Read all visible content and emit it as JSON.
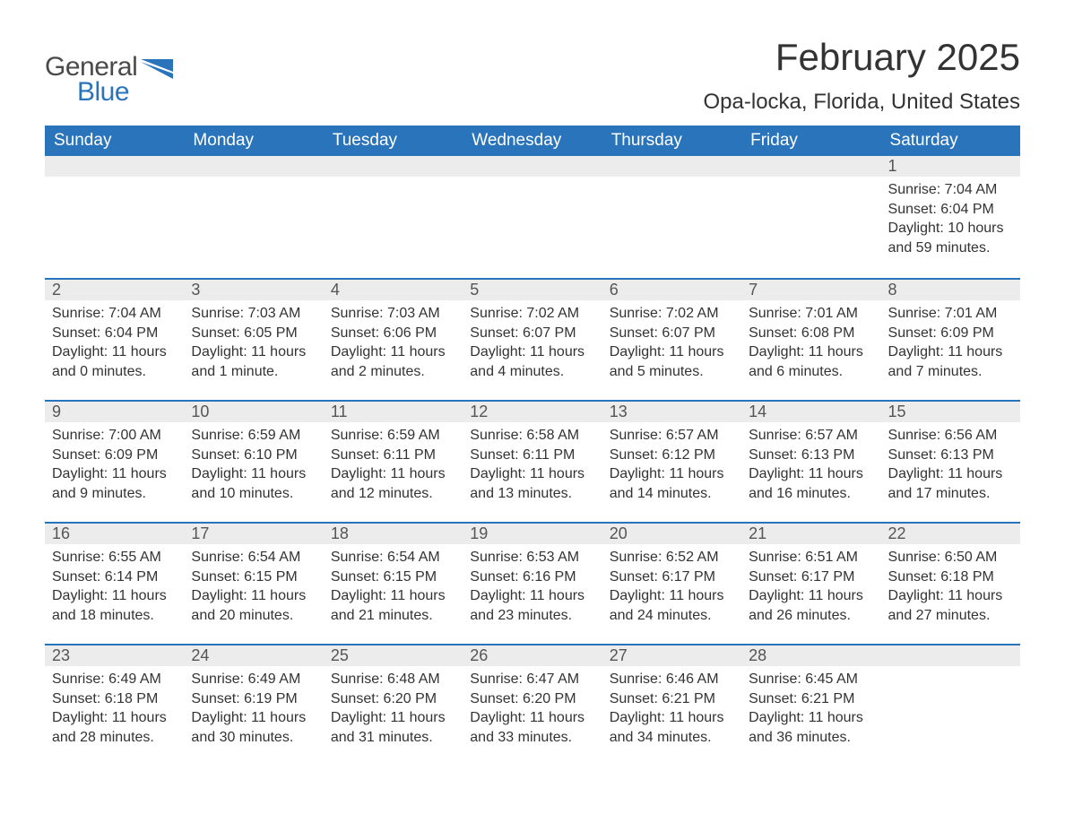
{
  "brand": {
    "part1": "General",
    "part2": "Blue"
  },
  "title": "February 2025",
  "location": "Opa-locka, Florida, United States",
  "colors": {
    "header_bg": "#2a74bb",
    "header_text": "#ffffff",
    "daynum_bg": "#ececec",
    "daynum_text": "#555555",
    "body_text": "#333333",
    "page_bg": "#ffffff",
    "row_border": "#2a74bb",
    "logo_accent": "#2a74bb",
    "logo_text": "#4a4a4a"
  },
  "typography": {
    "title_fontsize": 42,
    "location_fontsize": 24,
    "dow_fontsize": 19,
    "daynum_fontsize": 18,
    "body_fontsize": 16
  },
  "layout": {
    "columns": 7,
    "rows": 5
  },
  "daysOfWeek": [
    "Sunday",
    "Monday",
    "Tuesday",
    "Wednesday",
    "Thursday",
    "Friday",
    "Saturday"
  ],
  "weeks": [
    [
      {
        "num": "",
        "sunrise": "",
        "sunset": "",
        "daylight1": "",
        "daylight2": ""
      },
      {
        "num": "",
        "sunrise": "",
        "sunset": "",
        "daylight1": "",
        "daylight2": ""
      },
      {
        "num": "",
        "sunrise": "",
        "sunset": "",
        "daylight1": "",
        "daylight2": ""
      },
      {
        "num": "",
        "sunrise": "",
        "sunset": "",
        "daylight1": "",
        "daylight2": ""
      },
      {
        "num": "",
        "sunrise": "",
        "sunset": "",
        "daylight1": "",
        "daylight2": ""
      },
      {
        "num": "",
        "sunrise": "",
        "sunset": "",
        "daylight1": "",
        "daylight2": ""
      },
      {
        "num": "1",
        "sunrise": "Sunrise: 7:04 AM",
        "sunset": "Sunset: 6:04 PM",
        "daylight1": "Daylight: 10 hours",
        "daylight2": "and 59 minutes."
      }
    ],
    [
      {
        "num": "2",
        "sunrise": "Sunrise: 7:04 AM",
        "sunset": "Sunset: 6:04 PM",
        "daylight1": "Daylight: 11 hours",
        "daylight2": "and 0 minutes."
      },
      {
        "num": "3",
        "sunrise": "Sunrise: 7:03 AM",
        "sunset": "Sunset: 6:05 PM",
        "daylight1": "Daylight: 11 hours",
        "daylight2": "and 1 minute."
      },
      {
        "num": "4",
        "sunrise": "Sunrise: 7:03 AM",
        "sunset": "Sunset: 6:06 PM",
        "daylight1": "Daylight: 11 hours",
        "daylight2": "and 2 minutes."
      },
      {
        "num": "5",
        "sunrise": "Sunrise: 7:02 AM",
        "sunset": "Sunset: 6:07 PM",
        "daylight1": "Daylight: 11 hours",
        "daylight2": "and 4 minutes."
      },
      {
        "num": "6",
        "sunrise": "Sunrise: 7:02 AM",
        "sunset": "Sunset: 6:07 PM",
        "daylight1": "Daylight: 11 hours",
        "daylight2": "and 5 minutes."
      },
      {
        "num": "7",
        "sunrise": "Sunrise: 7:01 AM",
        "sunset": "Sunset: 6:08 PM",
        "daylight1": "Daylight: 11 hours",
        "daylight2": "and 6 minutes."
      },
      {
        "num": "8",
        "sunrise": "Sunrise: 7:01 AM",
        "sunset": "Sunset: 6:09 PM",
        "daylight1": "Daylight: 11 hours",
        "daylight2": "and 7 minutes."
      }
    ],
    [
      {
        "num": "9",
        "sunrise": "Sunrise: 7:00 AM",
        "sunset": "Sunset: 6:09 PM",
        "daylight1": "Daylight: 11 hours",
        "daylight2": "and 9 minutes."
      },
      {
        "num": "10",
        "sunrise": "Sunrise: 6:59 AM",
        "sunset": "Sunset: 6:10 PM",
        "daylight1": "Daylight: 11 hours",
        "daylight2": "and 10 minutes."
      },
      {
        "num": "11",
        "sunrise": "Sunrise: 6:59 AM",
        "sunset": "Sunset: 6:11 PM",
        "daylight1": "Daylight: 11 hours",
        "daylight2": "and 12 minutes."
      },
      {
        "num": "12",
        "sunrise": "Sunrise: 6:58 AM",
        "sunset": "Sunset: 6:11 PM",
        "daylight1": "Daylight: 11 hours",
        "daylight2": "and 13 minutes."
      },
      {
        "num": "13",
        "sunrise": "Sunrise: 6:57 AM",
        "sunset": "Sunset: 6:12 PM",
        "daylight1": "Daylight: 11 hours",
        "daylight2": "and 14 minutes."
      },
      {
        "num": "14",
        "sunrise": "Sunrise: 6:57 AM",
        "sunset": "Sunset: 6:13 PM",
        "daylight1": "Daylight: 11 hours",
        "daylight2": "and 16 minutes."
      },
      {
        "num": "15",
        "sunrise": "Sunrise: 6:56 AM",
        "sunset": "Sunset: 6:13 PM",
        "daylight1": "Daylight: 11 hours",
        "daylight2": "and 17 minutes."
      }
    ],
    [
      {
        "num": "16",
        "sunrise": "Sunrise: 6:55 AM",
        "sunset": "Sunset: 6:14 PM",
        "daylight1": "Daylight: 11 hours",
        "daylight2": "and 18 minutes."
      },
      {
        "num": "17",
        "sunrise": "Sunrise: 6:54 AM",
        "sunset": "Sunset: 6:15 PM",
        "daylight1": "Daylight: 11 hours",
        "daylight2": "and 20 minutes."
      },
      {
        "num": "18",
        "sunrise": "Sunrise: 6:54 AM",
        "sunset": "Sunset: 6:15 PM",
        "daylight1": "Daylight: 11 hours",
        "daylight2": "and 21 minutes."
      },
      {
        "num": "19",
        "sunrise": "Sunrise: 6:53 AM",
        "sunset": "Sunset: 6:16 PM",
        "daylight1": "Daylight: 11 hours",
        "daylight2": "and 23 minutes."
      },
      {
        "num": "20",
        "sunrise": "Sunrise: 6:52 AM",
        "sunset": "Sunset: 6:17 PM",
        "daylight1": "Daylight: 11 hours",
        "daylight2": "and 24 minutes."
      },
      {
        "num": "21",
        "sunrise": "Sunrise: 6:51 AM",
        "sunset": "Sunset: 6:17 PM",
        "daylight1": "Daylight: 11 hours",
        "daylight2": "and 26 minutes."
      },
      {
        "num": "22",
        "sunrise": "Sunrise: 6:50 AM",
        "sunset": "Sunset: 6:18 PM",
        "daylight1": "Daylight: 11 hours",
        "daylight2": "and 27 minutes."
      }
    ],
    [
      {
        "num": "23",
        "sunrise": "Sunrise: 6:49 AM",
        "sunset": "Sunset: 6:18 PM",
        "daylight1": "Daylight: 11 hours",
        "daylight2": "and 28 minutes."
      },
      {
        "num": "24",
        "sunrise": "Sunrise: 6:49 AM",
        "sunset": "Sunset: 6:19 PM",
        "daylight1": "Daylight: 11 hours",
        "daylight2": "and 30 minutes."
      },
      {
        "num": "25",
        "sunrise": "Sunrise: 6:48 AM",
        "sunset": "Sunset: 6:20 PM",
        "daylight1": "Daylight: 11 hours",
        "daylight2": "and 31 minutes."
      },
      {
        "num": "26",
        "sunrise": "Sunrise: 6:47 AM",
        "sunset": "Sunset: 6:20 PM",
        "daylight1": "Daylight: 11 hours",
        "daylight2": "and 33 minutes."
      },
      {
        "num": "27",
        "sunrise": "Sunrise: 6:46 AM",
        "sunset": "Sunset: 6:21 PM",
        "daylight1": "Daylight: 11 hours",
        "daylight2": "and 34 minutes."
      },
      {
        "num": "28",
        "sunrise": "Sunrise: 6:45 AM",
        "sunset": "Sunset: 6:21 PM",
        "daylight1": "Daylight: 11 hours",
        "daylight2": "and 36 minutes."
      },
      {
        "num": "",
        "sunrise": "",
        "sunset": "",
        "daylight1": "",
        "daylight2": ""
      }
    ]
  ]
}
